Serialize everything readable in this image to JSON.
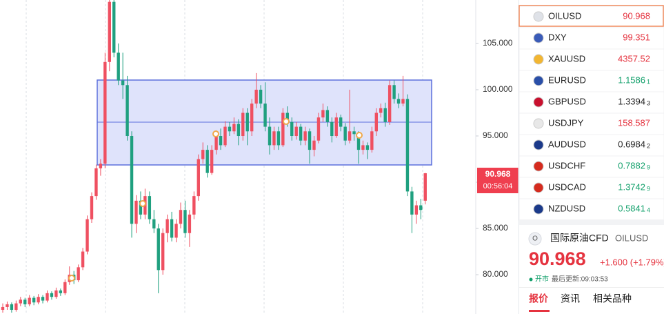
{
  "chart_data": {
    "type": "candlestick",
    "ylim": [
      75.75,
      109.7
    ],
    "yticks": [
      {
        "value": 80,
        "label": "80.000"
      },
      {
        "value": 85,
        "label": "85.000"
      },
      {
        "value": 90,
        "label": "90.000"
      },
      {
        "value": 95,
        "label": "95.000"
      },
      {
        "value": 100,
        "label": "100.000"
      },
      {
        "value": 105,
        "label": "105.000"
      }
    ],
    "up_color": "#ef5061",
    "down_color": "#1fa07f",
    "candles": [
      [
        76.2,
        76.9,
        75.9,
        76.5
      ],
      [
        76.5,
        77.1,
        76.2,
        76.8
      ],
      [
        76.8,
        77.0,
        75.9,
        76.2
      ],
      [
        76.2,
        77.2,
        76.0,
        76.9
      ],
      [
        76.9,
        77.6,
        76.6,
        77.3
      ],
      [
        77.3,
        77.5,
        76.5,
        76.8
      ],
      [
        76.8,
        77.8,
        76.6,
        77.5
      ],
      [
        77.5,
        77.7,
        76.7,
        77.0
      ],
      [
        77.0,
        77.9,
        76.8,
        77.6
      ],
      [
        77.6,
        77.8,
        76.9,
        77.2
      ],
      [
        77.2,
        78.3,
        77.0,
        78.0
      ],
      [
        78.0,
        78.2,
        77.3,
        77.6
      ],
      [
        77.6,
        78.6,
        77.4,
        78.3
      ],
      [
        78.3,
        78.5,
        77.7,
        78.0
      ],
      [
        78.0,
        79.5,
        77.8,
        79.2
      ],
      [
        79.2,
        80.9,
        78.9,
        80.0
      ],
      [
        80.0,
        80.4,
        79.0,
        79.4
      ],
      [
        79.4,
        81.1,
        79.2,
        80.8
      ],
      [
        80.8,
        82.9,
        80.5,
        82.5
      ],
      [
        82.5,
        86.4,
        82.2,
        86.0
      ],
      [
        86.0,
        88.9,
        85.6,
        88.5
      ],
      [
        88.5,
        91.9,
        88.1,
        91.5
      ],
      [
        91.5,
        92.5,
        90.7,
        92.0
      ],
      [
        92.0,
        104.0,
        91.5,
        103.0
      ],
      [
        103.0,
        109.7,
        102.0,
        109.5
      ],
      [
        109.5,
        109.7,
        103.5,
        104.0
      ],
      [
        104.0,
        105.0,
        100.5,
        101.0
      ],
      [
        101.0,
        104.0,
        99.0,
        100.5
      ],
      [
        100.5,
        101.5,
        94.5,
        95.0
      ],
      [
        95.0,
        95.5,
        84.0,
        85.5
      ],
      [
        85.5,
        88.6,
        84.5,
        88.0
      ],
      [
        88.0,
        89.0,
        86.0,
        86.5
      ],
      [
        86.5,
        89.3,
        86.0,
        88.5
      ],
      [
        88.5,
        89.0,
        85.5,
        86.0
      ],
      [
        86.0,
        87.0,
        84.5,
        85.0
      ],
      [
        85.0,
        85.5,
        78.0,
        80.5
      ],
      [
        80.5,
        85.0,
        80.0,
        84.5
      ],
      [
        84.5,
        86.5,
        83.5,
        86.0
      ],
      [
        86.0,
        86.8,
        83.6,
        84.0
      ],
      [
        84.0,
        86.0,
        83.5,
        85.5
      ],
      [
        85.5,
        87.8,
        85.0,
        87.0
      ],
      [
        87.0,
        88.0,
        84.0,
        84.5
      ],
      [
        84.5,
        87.0,
        83.0,
        86.5
      ],
      [
        86.5,
        89.0,
        86.0,
        88.5
      ],
      [
        88.5,
        93.0,
        88.0,
        92.5
      ],
      [
        92.5,
        94.3,
        92.0,
        93.5
      ],
      [
        93.5,
        94.0,
        90.5,
        91.0
      ],
      [
        91.0,
        94.0,
        90.8,
        93.5
      ],
      [
        93.5,
        95.6,
        93.0,
        95.0
      ],
      [
        95.0,
        95.8,
        93.5,
        94.0
      ],
      [
        94.0,
        96.6,
        93.8,
        96.0
      ],
      [
        96.0,
        96.5,
        95.0,
        95.5
      ],
      [
        95.5,
        97.0,
        95.2,
        96.3
      ],
      [
        96.3,
        96.8,
        94.0,
        95.0
      ],
      [
        95.0,
        98.0,
        94.5,
        97.5
      ],
      [
        97.5,
        98.0,
        94.0,
        95.5
      ],
      [
        95.5,
        99.0,
        95.0,
        98.5
      ],
      [
        98.5,
        101.8,
        98.0,
        100.0
      ],
      [
        100.0,
        100.5,
        98.0,
        98.5
      ],
      [
        98.5,
        100.8,
        95.5,
        96.0
      ],
      [
        96.0,
        97.0,
        93.0,
        94.0
      ],
      [
        94.0,
        96.0,
        93.5,
        95.5
      ],
      [
        95.5,
        96.0,
        93.5,
        94.0
      ],
      [
        94.0,
        98.0,
        93.8,
        97.5
      ],
      [
        97.5,
        98.2,
        96.0,
        96.5
      ],
      [
        96.5,
        97.0,
        94.5,
        95.0
      ],
      [
        95.0,
        96.5,
        94.6,
        96.0
      ],
      [
        96.0,
        96.3,
        94.0,
        94.5
      ],
      [
        94.5,
        96.0,
        94.0,
        95.5
      ],
      [
        95.5,
        95.8,
        92.0,
        93.5
      ],
      [
        93.5,
        95.0,
        92.8,
        94.5
      ],
      [
        94.5,
        97.5,
        94.2,
        97.0
      ],
      [
        97.0,
        98.5,
        96.5,
        97.8
      ],
      [
        97.8,
        98.2,
        96.0,
        96.5
      ],
      [
        96.5,
        97.0,
        94.3,
        95.0
      ],
      [
        95.0,
        97.5,
        94.8,
        97.0
      ],
      [
        97.0,
        97.3,
        95.5,
        96.0
      ],
      [
        96.0,
        96.4,
        94.0,
        94.5
      ],
      [
        94.5,
        100.0,
        94.2,
        95.5
      ],
      [
        95.5,
        96.0,
        94.5,
        95.2
      ],
      [
        95.2,
        95.5,
        92.0,
        93.5
      ],
      [
        93.5,
        94.5,
        93.0,
        94.0
      ],
      [
        94.0,
        94.3,
        92.5,
        93.5
      ],
      [
        93.5,
        96.0,
        93.2,
        95.5
      ],
      [
        95.5,
        98.0,
        95.0,
        97.5
      ],
      [
        97.5,
        98.5,
        97.0,
        98.0
      ],
      [
        98.0,
        98.6,
        96.0,
        96.5
      ],
      [
        96.5,
        101.0,
        96.2,
        100.5
      ],
      [
        100.5,
        101.0,
        98.5,
        99.0
      ],
      [
        99.0,
        99.6,
        98.0,
        98.5
      ],
      [
        98.5,
        101.5,
        98.2,
        99.0
      ],
      [
        99.0,
        99.5,
        88.5,
        89.0
      ],
      [
        89.0,
        89.5,
        84.5,
        86.5
      ],
      [
        86.5,
        88.0,
        85.5,
        87.5
      ],
      [
        87.5,
        88.2,
        86.0,
        87.0
      ],
      [
        88.0,
        91.0,
        87.6,
        90.968
      ]
    ]
  },
  "price_tag": {
    "price": "90.968",
    "countdown": "00:56:04"
  },
  "watchlist": [
    {
      "symbol": "OILUSD",
      "price": "90.968",
      "color": "#e5333f"
    },
    {
      "symbol": "DXY",
      "price": "99.351",
      "color": "#e5333f"
    },
    {
      "symbol": "XAUUSD",
      "price": "4357.52",
      "color": "#e5333f"
    },
    {
      "symbol": "EURUSD",
      "price": "1.1586",
      "pip": "1",
      "color": "#12a06b"
    },
    {
      "symbol": "GBPUSD",
      "price": "1.3394",
      "pip": "3",
      "color": "#222222"
    },
    {
      "symbol": "USDJPY",
      "price": "158.587",
      "color": "#e5333f"
    },
    {
      "symbol": "AUDUSD",
      "price": "0.6984",
      "pip": "2",
      "color": "#222222"
    },
    {
      "symbol": "USDCHF",
      "price": "0.7882",
      "pip": "9",
      "color": "#12a06b"
    },
    {
      "symbol": "USDCAD",
      "price": "1.3742",
      "pip": "9",
      "color": "#12a06b"
    },
    {
      "symbol": "NZDUSD",
      "price": "0.5841",
      "pip": "4",
      "color": "#12a06b"
    }
  ],
  "detail": {
    "name": "国际原油CFD",
    "symbol": "OILUSD",
    "price": "90.968",
    "change": "+1.600 (+1.79%)",
    "status": "开市",
    "updated": "最后更新:09:03:53",
    "tabs": [
      "报价",
      "资讯",
      "相关品种"
    ]
  }
}
